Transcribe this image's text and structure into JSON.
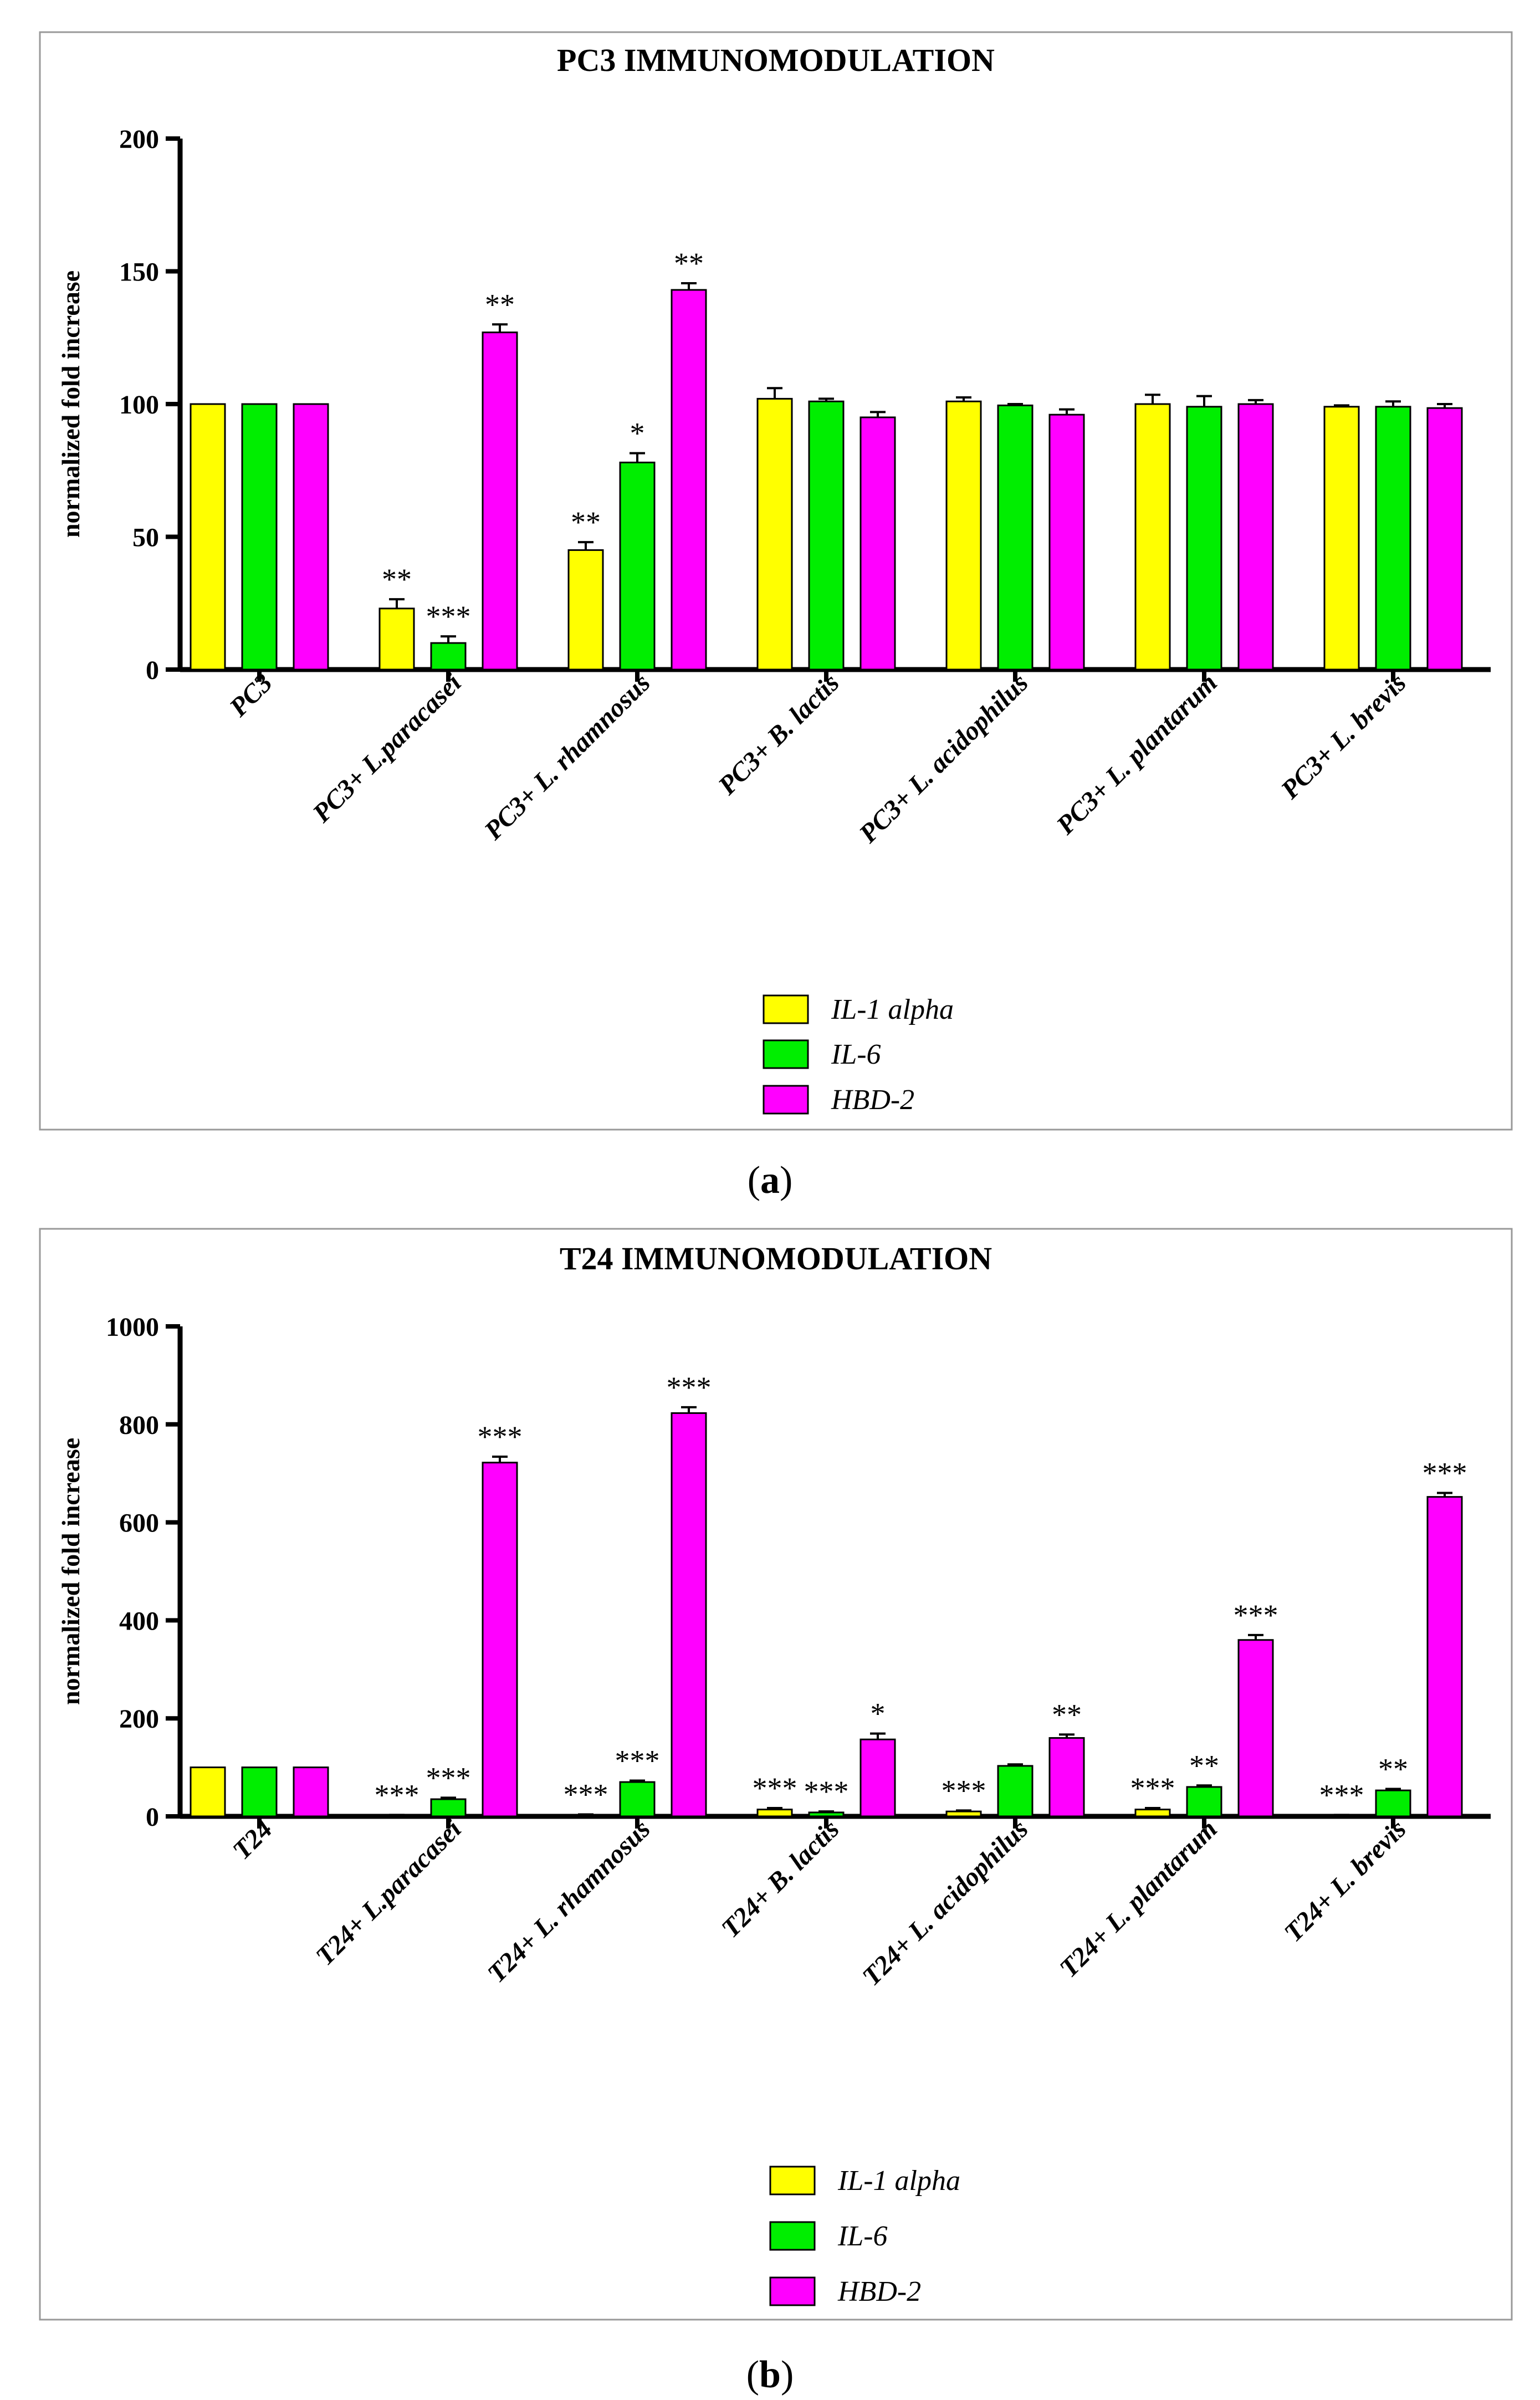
{
  "chart_data": [
    {
      "type": "bar",
      "panel": "a",
      "title": "PC3 IMMUNOMODULATION",
      "xlabel": "",
      "ylabel": "normalized fold increase",
      "ylim": [
        0,
        200
      ],
      "yticks": [
        "0",
        "50",
        "100",
        "150",
        "200"
      ],
      "grid": false,
      "legend_position": "bottom-center",
      "categories": [
        "PC3",
        "PC3+ L.paracasei",
        "PC3+ L. rhamnosus",
        "PC3+ B. lactis",
        "PC3+ L. acidophilus",
        "PC3+ L. plantarum",
        "PC3+ L. brevis"
      ],
      "series": [
        {
          "name": "IL-1 alpha",
          "color": "#ffff00",
          "values": [
            100,
            23,
            45,
            102,
            101,
            100,
            99
          ],
          "errors": [
            0,
            3.5,
            3,
            4,
            1.5,
            3.5,
            0.5
          ],
          "significance": [
            "",
            "**",
            "**",
            "",
            "",
            "",
            ""
          ]
        },
        {
          "name": "IL-6",
          "color": "#00ee00",
          "values": [
            100,
            10,
            78,
            101,
            99.5,
            99,
            99
          ],
          "errors": [
            0,
            2.5,
            3.5,
            1,
            0.5,
            4,
            2
          ],
          "significance": [
            "",
            "***",
            "*",
            "",
            "",
            "",
            ""
          ]
        },
        {
          "name": "HBD-2",
          "color": "#ff00ff",
          "values": [
            100,
            127,
            143,
            95,
            96,
            100,
            98.5
          ],
          "errors": [
            0,
            3,
            2.5,
            2,
            2,
            1.5,
            1.5
          ],
          "significance": [
            "",
            "**",
            "**",
            "",
            "",
            "",
            ""
          ]
        }
      ]
    },
    {
      "type": "bar",
      "panel": "b",
      "title": "T24 IMMUNOMODULATION",
      "xlabel": "",
      "ylabel": "normalized fold increase",
      "ylim": [
        0,
        1000
      ],
      "yticks": [
        "0",
        "200",
        "400",
        "600",
        "800",
        "1000"
      ],
      "grid": false,
      "legend_position": "bottom-center",
      "categories": [
        "T24",
        "T24+ L.paracasei",
        "T24+ L. rhamnosus",
        "T24+ B. lactis",
        "T24+ L. acidophilus",
        "T24+ L. plantarum",
        "T24+ L. brevis"
      ],
      "series": [
        {
          "name": "IL-1 alpha",
          "color": "#ffff00",
          "values": [
            100,
            2,
            3,
            14,
            10,
            14,
            2
          ],
          "errors": [
            0,
            1,
            1,
            3,
            2,
            3,
            1
          ],
          "significance": [
            "",
            "***",
            "***",
            "***",
            "***",
            "***",
            "***"
          ]
        },
        {
          "name": "IL-6",
          "color": "#00ee00",
          "values": [
            100,
            35,
            70,
            8,
            103,
            60,
            53
          ],
          "errors": [
            0,
            3,
            3,
            2,
            3,
            3,
            3
          ],
          "significance": [
            "",
            "***",
            "***",
            "***",
            "",
            "**",
            "**"
          ]
        },
        {
          "name": "HBD-2",
          "color": "#ff00ff",
          "values": [
            100,
            722,
            823,
            157,
            160,
            360,
            652
          ],
          "errors": [
            0,
            12,
            12,
            12,
            7,
            10,
            8
          ],
          "significance": [
            "",
            "***",
            "***",
            "*",
            "**",
            "***",
            "***"
          ]
        }
      ]
    }
  ],
  "captions": {
    "a": "a",
    "b": "b"
  }
}
